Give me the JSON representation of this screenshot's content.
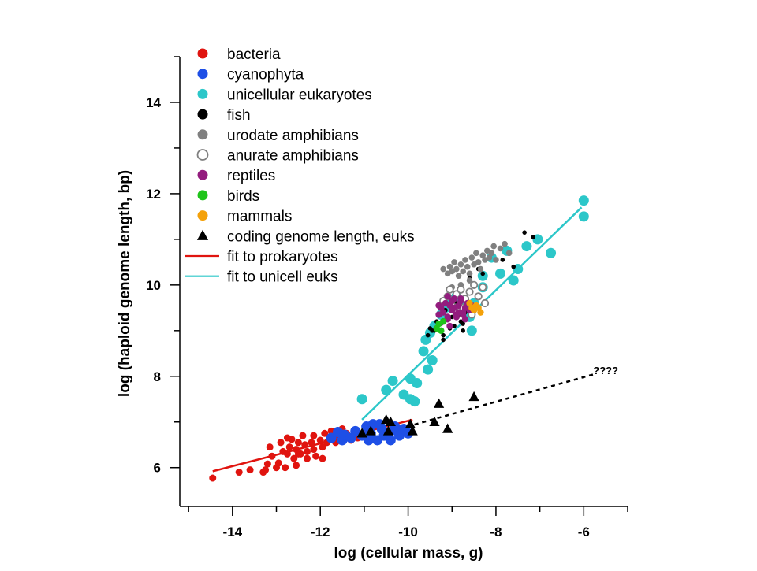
{
  "chart_data": {
    "type": "scatter",
    "xlabel": "log (cellular mass, g)",
    "ylabel": "log (haploid genome length, bp)",
    "xlim": [
      -15.2,
      -5.0
    ],
    "ylim": [
      5.15,
      15.0
    ],
    "x_ticks": [
      -14,
      -12,
      -10,
      -8,
      -6
    ],
    "y_ticks": [
      6,
      8,
      10,
      12,
      14
    ],
    "grid": false,
    "legend_position": "top-left",
    "series": [
      {
        "name": "bacteria",
        "kind": "points",
        "marker": "circle",
        "color": "#e0140f",
        "size": 4.5,
        "x": [
          -14.45,
          -13.85,
          -13.6,
          -13.3,
          -13.2,
          -13.1,
          -13.15,
          -13.0,
          -12.85,
          -12.9,
          -12.75,
          -12.7,
          -12.65,
          -12.6,
          -12.55,
          -12.5,
          -12.45,
          -12.4,
          -12.35,
          -12.3,
          -12.2,
          -12.15,
          -12.1,
          -12.0,
          -11.95,
          -11.9,
          -11.85,
          -11.8,
          -11.75,
          -11.65,
          -11.6,
          -11.5,
          -11.4,
          -11.3,
          -11.2,
          -11.15,
          -13.25,
          -12.95,
          -12.8,
          -12.5,
          -12.3,
          -12.15,
          -11.95,
          -12.55,
          -12.75
        ],
        "y": [
          5.77,
          5.9,
          5.95,
          5.9,
          6.08,
          6.25,
          6.45,
          6.0,
          6.35,
          6.55,
          6.3,
          6.45,
          6.62,
          6.2,
          6.4,
          6.55,
          6.3,
          6.7,
          6.5,
          6.35,
          6.55,
          6.7,
          6.25,
          6.6,
          6.45,
          6.75,
          6.55,
          6.6,
          6.8,
          6.55,
          6.65,
          6.85,
          6.75,
          6.6,
          6.7,
          6.65,
          5.95,
          6.1,
          6.0,
          6.3,
          6.2,
          6.4,
          6.2,
          6.05,
          6.65
        ]
      },
      {
        "name": "cyanophyta",
        "kind": "points",
        "marker": "circle",
        "color": "#1e4fe6",
        "size": 6.5,
        "x": [
          -11.75,
          -11.6,
          -11.5,
          -11.45,
          -11.3,
          -11.2,
          -11.05,
          -10.95,
          -10.85,
          -10.8,
          -10.7,
          -10.6,
          -10.55,
          -10.45,
          -10.4,
          -10.3,
          -10.25,
          -10.2,
          -10.1,
          -10.0,
          -10.9,
          -10.65
        ],
        "y": [
          6.65,
          6.78,
          6.6,
          6.72,
          6.65,
          6.8,
          6.7,
          6.9,
          6.75,
          6.95,
          6.6,
          6.85,
          6.7,
          6.75,
          6.6,
          6.9,
          6.8,
          6.7,
          6.85,
          6.75,
          6.6,
          6.95
        ]
      },
      {
        "name": "unicellular eukaryotes",
        "kind": "points",
        "marker": "circle",
        "color": "#2cc7c9",
        "size": 6.5,
        "x": [
          -6.0,
          -6.0,
          -6.75,
          -7.05,
          -7.3,
          -7.5,
          -7.6,
          -7.9,
          -8.1,
          -8.3,
          -8.5,
          -8.55,
          -8.6,
          -8.7,
          -8.9,
          -9.05,
          -9.15,
          -9.25,
          -9.4,
          -9.5,
          -9.6,
          -9.65,
          -9.45,
          -9.55,
          -9.85,
          -9.95,
          -10.1,
          -10.35,
          -10.5,
          -11.05,
          -9.95,
          -9.8,
          -8.3,
          -8.55,
          -7.75
        ],
        "y": [
          11.85,
          11.5,
          10.7,
          11.0,
          10.85,
          10.35,
          10.1,
          10.25,
          10.6,
          10.2,
          9.6,
          9.45,
          9.3,
          9.6,
          9.75,
          9.65,
          9.5,
          9.35,
          9.1,
          8.95,
          8.8,
          8.55,
          8.35,
          8.15,
          7.45,
          7.95,
          7.6,
          7.9,
          7.7,
          7.5,
          7.5,
          7.85,
          9.95,
          9.0,
          10.75
        ]
      },
      {
        "name": "fish",
        "kind": "points",
        "marker": "circle",
        "color": "#000000",
        "size": 2.8,
        "x": [
          -9.45,
          -9.35,
          -9.3,
          -9.25,
          -9.2,
          -9.15,
          -9.1,
          -9.05,
          -9.0,
          -8.95,
          -8.9,
          -8.85,
          -8.8,
          -8.75,
          -8.7,
          -8.65,
          -8.6,
          -8.9,
          -8.6,
          -8.4,
          -8.3,
          -7.85,
          -7.6,
          -7.35,
          -7.15,
          -9.55,
          -9.5,
          -9.4,
          -9.2,
          -8.75
        ],
        "y": [
          9.0,
          9.2,
          9.35,
          9.15,
          8.9,
          9.45,
          9.25,
          9.05,
          9.3,
          9.1,
          9.55,
          9.35,
          9.2,
          9.0,
          9.4,
          9.65,
          9.85,
          9.6,
          10.15,
          10.35,
          10.25,
          10.55,
          10.4,
          11.15,
          11.05,
          8.9,
          9.05,
          9.0,
          8.8,
          9.15
        ]
      },
      {
        "name": "urodate amphibians",
        "kind": "points",
        "marker": "circle",
        "color": "#808080",
        "size": 3.8,
        "x": [
          -9.2,
          -9.1,
          -9.05,
          -9.0,
          -8.95,
          -8.9,
          -8.85,
          -8.8,
          -8.75,
          -8.7,
          -8.65,
          -8.6,
          -8.55,
          -8.5,
          -8.45,
          -8.4,
          -8.35,
          -8.3,
          -8.25,
          -8.2,
          -8.15,
          -8.1,
          -8.05,
          -8.0,
          -7.9,
          -7.8,
          -7.7,
          -8.6,
          -8.8,
          -9.0
        ],
        "y": [
          10.35,
          10.25,
          10.4,
          10.3,
          10.5,
          10.35,
          10.2,
          10.45,
          10.3,
          10.55,
          10.4,
          10.25,
          10.6,
          10.45,
          10.7,
          10.5,
          10.35,
          10.65,
          10.55,
          10.75,
          10.6,
          10.7,
          10.85,
          10.55,
          10.8,
          10.9,
          10.7,
          10.1,
          10.0,
          9.95
        ]
      },
      {
        "name": "anurate amphibians",
        "kind": "points",
        "marker": "open-circle",
        "color": "#808080",
        "size": 4.2,
        "x": [
          -9.2,
          -9.1,
          -9.0,
          -8.9,
          -8.8,
          -8.7,
          -8.6,
          -8.5,
          -8.4,
          -8.3,
          -8.25,
          -8.95,
          -8.75,
          -8.55,
          -9.05
        ],
        "y": [
          9.65,
          9.75,
          9.55,
          9.8,
          9.9,
          9.7,
          9.85,
          10.0,
          9.75,
          9.95,
          9.6,
          9.45,
          9.5,
          9.35,
          9.9
        ]
      },
      {
        "name": "reptiles",
        "kind": "points",
        "marker": "circle",
        "color": "#931c7e",
        "size": 4.2,
        "x": [
          -9.3,
          -9.25,
          -9.2,
          -9.15,
          -9.1,
          -9.05,
          -9.0,
          -8.95,
          -8.9,
          -8.85,
          -8.8,
          -8.75,
          -8.7,
          -8.65,
          -8.6,
          -8.55,
          -9.2,
          -9.1,
          -9.0,
          -8.9,
          -8.8,
          -8.7,
          -9.3,
          -9.1,
          -8.95,
          -8.85,
          -8.75,
          -9.05
        ],
        "y": [
          9.35,
          9.5,
          9.4,
          9.6,
          9.3,
          9.55,
          9.45,
          9.7,
          9.35,
          9.55,
          9.65,
          9.4,
          9.5,
          9.6,
          9.45,
          9.55,
          9.2,
          9.25,
          9.65,
          9.3,
          9.7,
          9.25,
          9.55,
          9.75,
          9.5,
          9.4,
          9.35,
          9.1
        ]
      },
      {
        "name": "birds",
        "kind": "points",
        "marker": "circle",
        "color": "#1fc41a",
        "size": 4.2,
        "x": [
          -9.35,
          -9.3,
          -9.25,
          -9.2
        ],
        "y": [
          9.05,
          9.15,
          9.0,
          9.2
        ]
      },
      {
        "name": "mammals",
        "kind": "points",
        "marker": "circle",
        "color": "#f4a10a",
        "size": 4.2,
        "x": [
          -8.5,
          -8.4,
          -8.35,
          -8.45,
          -8.55,
          -8.6
        ],
        "y": [
          9.45,
          9.5,
          9.4,
          9.55,
          9.5,
          9.6
        ]
      },
      {
        "name": "coding genome length, euks",
        "kind": "points",
        "marker": "triangle",
        "color": "#000000",
        "size": 7,
        "x": [
          -11.05,
          -10.85,
          -10.5,
          -10.4,
          -10.45,
          -9.9,
          -9.95,
          -9.4,
          -9.3,
          -9.1,
          -8.5
        ],
        "y": [
          6.75,
          6.8,
          7.05,
          7.0,
          6.8,
          6.8,
          6.95,
          7.0,
          7.4,
          6.85,
          7.55
        ]
      },
      {
        "name": "fit to prokaryotes",
        "kind": "line",
        "color": "#e0140f",
        "width": 2.5,
        "x": [
          -14.45,
          -9.9
        ],
        "y": [
          5.92,
          7.05
        ]
      },
      {
        "name": "fit to unicell euks",
        "kind": "line",
        "color": "#2cc7c9",
        "width": 2.5,
        "x": [
          -11.05,
          -6.05
        ],
        "y": [
          7.05,
          11.7
        ]
      },
      {
        "name": "",
        "kind": "dashed-line",
        "color": "#000000",
        "width": 2.5,
        "x": [
          -10.2,
          -5.75
        ],
        "y": [
          6.85,
          8.05
        ]
      }
    ],
    "annotations": [
      {
        "text": "????",
        "x": -5.5,
        "y": 8.1
      }
    ]
  }
}
